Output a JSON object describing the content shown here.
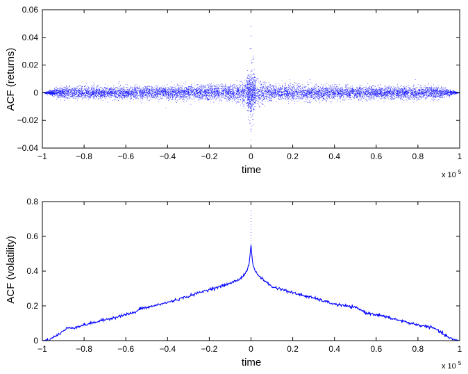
{
  "chart_data": [
    {
      "type": "scatter",
      "ylabel": "ACF (returns)",
      "xlabel": "time",
      "x_multiplier_base": "x 10",
      "x_multiplier_exp": "5",
      "xlim": [
        -1,
        1
      ],
      "ylim": [
        -0.04,
        0.06
      ],
      "xticks": [
        -1,
        -0.8,
        -0.6,
        -0.4,
        -0.2,
        0,
        0.2,
        0.4,
        0.6,
        0.8,
        1
      ],
      "xtick_labels": [
        "−1",
        "−0.8",
        "−0.6",
        "−0.4",
        "−0.2",
        "0",
        "0.2",
        "0.4",
        "0.6",
        "0.8",
        "1"
      ],
      "yticks": [
        -0.04,
        -0.02,
        0,
        0.02,
        0.04,
        0.06
      ],
      "ytick_labels": [
        "−0.04",
        "−0.02",
        "0",
        "0.02",
        "0.04",
        "0.06"
      ],
      "grid": false,
      "color": "#0000ff",
      "points_summary": {
        "description_values": "dense symmetric noise around 0",
        "envelope_x": [
          -1,
          -0.9,
          -0.5,
          -0.1,
          -0.02,
          0,
          0.02,
          0.1,
          0.5,
          0.9,
          1
        ],
        "envelope_y": [
          0.0,
          0.004,
          0.004,
          0.005,
          0.008,
          0.03,
          0.008,
          0.005,
          0.004,
          0.004,
          0.0
        ],
        "outliers": [
          {
            "x": 0,
            "y": 0.048
          },
          {
            "x": 0,
            "y": 0.041
          },
          {
            "x": 0,
            "y": 0.032
          },
          {
            "x": 0,
            "y": -0.028
          },
          {
            "x": -0.005,
            "y": -0.022
          },
          {
            "x": 0.005,
            "y": 0.022
          }
        ]
      }
    },
    {
      "type": "line",
      "ylabel": "ACF (volatility)",
      "xlabel": "time",
      "x_multiplier_base": "x 10",
      "x_multiplier_exp": "5",
      "xlim": [
        -1,
        1
      ],
      "ylim": [
        0,
        0.8
      ],
      "xticks": [
        -1,
        -0.8,
        -0.6,
        -0.4,
        -0.2,
        0,
        0.2,
        0.4,
        0.6,
        0.8,
        1
      ],
      "xtick_labels": [
        "−1",
        "−0.8",
        "−0.6",
        "−0.4",
        "−0.2",
        "0",
        "0.2",
        "0.4",
        "0.6",
        "0.8",
        "1"
      ],
      "yticks": [
        0,
        0.2,
        0.4,
        0.6,
        0.8
      ],
      "ytick_labels": [
        "0",
        "0.2",
        "0.4",
        "0.6",
        "0.8"
      ],
      "grid": false,
      "color": "#0000ff",
      "x": [
        -1,
        -0.97,
        -0.93,
        -0.9,
        -0.88,
        -0.85,
        -0.8,
        -0.7,
        -0.6,
        -0.55,
        -0.53,
        -0.5,
        -0.4,
        -0.3,
        -0.2,
        -0.15,
        -0.1,
        -0.06,
        -0.04,
        -0.02,
        -0.01,
        0,
        0.01,
        0.02,
        0.04,
        0.06,
        0.1,
        0.15,
        0.2,
        0.3,
        0.4,
        0.5,
        0.53,
        0.55,
        0.6,
        0.7,
        0.8,
        0.85,
        0.88,
        0.9,
        0.93,
        0.97,
        1
      ],
      "y": [
        0,
        0.005,
        0.03,
        0.055,
        0.072,
        0.075,
        0.09,
        0.12,
        0.15,
        0.165,
        0.185,
        0.19,
        0.22,
        0.255,
        0.295,
        0.31,
        0.33,
        0.35,
        0.37,
        0.4,
        0.44,
        0.54,
        0.43,
        0.4,
        0.37,
        0.35,
        0.31,
        0.295,
        0.275,
        0.245,
        0.21,
        0.19,
        0.175,
        0.16,
        0.15,
        0.12,
        0.09,
        0.08,
        0.07,
        0.055,
        0.03,
        0.005,
        0
      ]
    }
  ]
}
